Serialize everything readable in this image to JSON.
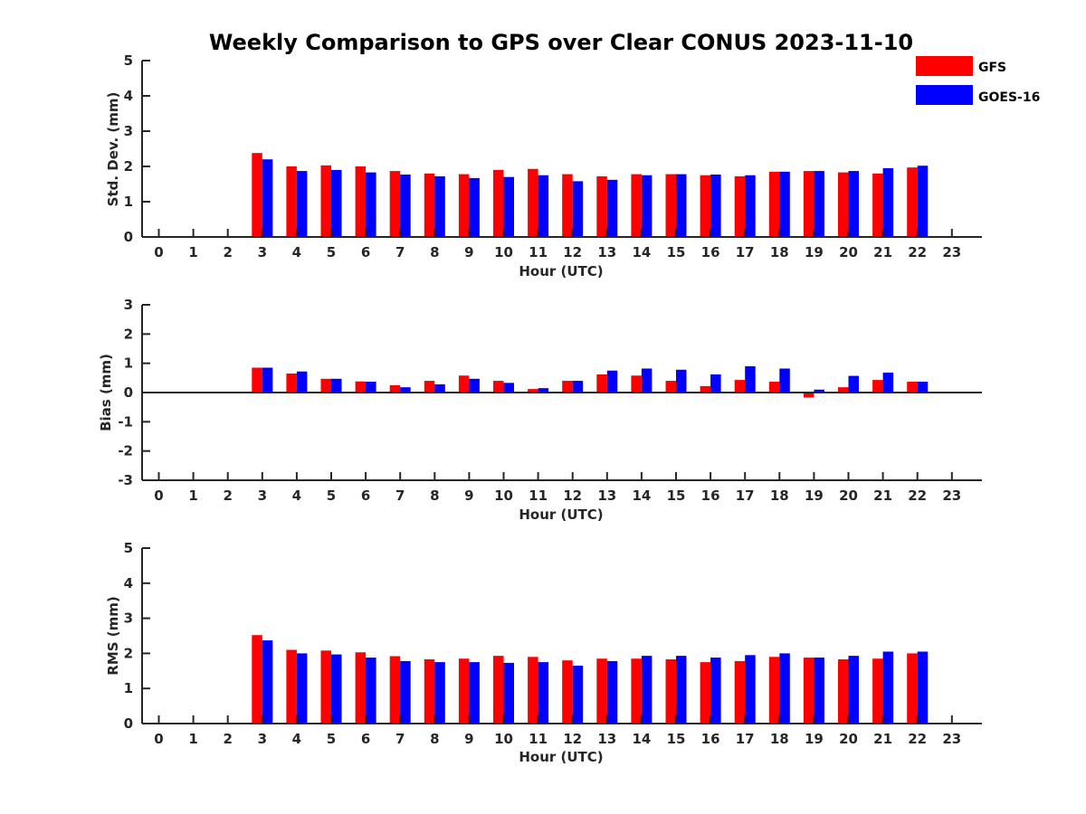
{
  "title": "Weekly Comparison to GPS over Clear CONUS 2023-11-10",
  "legend": {
    "items": [
      {
        "label": "GFS",
        "color": "#ff0000"
      },
      {
        "label": "GOES-16",
        "color": "#0000ff"
      }
    ]
  },
  "chart_data": [
    {
      "type": "bar",
      "ylabel": "Std. Dev. (mm)",
      "xlabel": "Hour (UTC)",
      "ylim": [
        0,
        5
      ],
      "yticks": [
        "0",
        "1",
        "2",
        "3",
        "4",
        "5"
      ],
      "categories": [
        "0",
        "1",
        "2",
        "3",
        "4",
        "5",
        "6",
        "7",
        "8",
        "9",
        "10",
        "11",
        "12",
        "13",
        "14",
        "15",
        "16",
        "17",
        "18",
        "19",
        "20",
        "21",
        "22",
        "23"
      ],
      "series": [
        {
          "name": "GFS",
          "color": "#ff0000",
          "values": [
            null,
            null,
            null,
            2.38,
            2.0,
            2.03,
            2.0,
            1.87,
            1.8,
            1.78,
            1.9,
            1.93,
            1.78,
            1.72,
            1.78,
            1.78,
            1.75,
            1.72,
            1.85,
            1.87,
            1.83,
            1.8,
            1.97,
            null
          ]
        },
        {
          "name": "GOES-16",
          "color": "#0000ff",
          "values": [
            null,
            null,
            null,
            2.2,
            1.87,
            1.9,
            1.83,
            1.77,
            1.72,
            1.67,
            1.7,
            1.75,
            1.58,
            1.62,
            1.75,
            1.78,
            1.77,
            1.75,
            1.85,
            1.87,
            1.87,
            1.95,
            2.02,
            null
          ]
        }
      ]
    },
    {
      "type": "bar",
      "ylabel": "Bias (mm)",
      "xlabel": "Hour (UTC)",
      "ylim": [
        -3,
        3
      ],
      "yticks": [
        "-3",
        "-2",
        "-1",
        "0",
        "1",
        "2",
        "3"
      ],
      "categories": [
        "0",
        "1",
        "2",
        "3",
        "4",
        "5",
        "6",
        "7",
        "8",
        "9",
        "10",
        "11",
        "12",
        "13",
        "14",
        "15",
        "16",
        "17",
        "18",
        "19",
        "20",
        "21",
        "22",
        "23"
      ],
      "series": [
        {
          "name": "GFS",
          "color": "#ff0000",
          "values": [
            null,
            null,
            null,
            0.85,
            0.65,
            0.47,
            0.38,
            0.25,
            0.4,
            0.58,
            0.4,
            0.12,
            0.4,
            0.62,
            0.58,
            0.4,
            0.22,
            0.43,
            0.37,
            -0.17,
            0.18,
            0.43,
            0.37,
            null
          ]
        },
        {
          "name": "GOES-16",
          "color": "#0000ff",
          "values": [
            null,
            null,
            null,
            0.85,
            0.72,
            0.47,
            0.37,
            0.18,
            0.28,
            0.47,
            0.33,
            0.15,
            0.4,
            0.75,
            0.82,
            0.78,
            0.62,
            0.9,
            0.82,
            0.1,
            0.57,
            0.68,
            0.37,
            null
          ]
        }
      ]
    },
    {
      "type": "bar",
      "ylabel": "RMS (mm)",
      "xlabel": "Hour (UTC)",
      "ylim": [
        0,
        5
      ],
      "yticks": [
        "0",
        "1",
        "2",
        "3",
        "4",
        "5"
      ],
      "categories": [
        "0",
        "1",
        "2",
        "3",
        "4",
        "5",
        "6",
        "7",
        "8",
        "9",
        "10",
        "11",
        "12",
        "13",
        "14",
        "15",
        "16",
        "17",
        "18",
        "19",
        "20",
        "21",
        "22",
        "23"
      ],
      "series": [
        {
          "name": "GFS",
          "color": "#ff0000",
          "values": [
            null,
            null,
            null,
            2.52,
            2.1,
            2.08,
            2.03,
            1.92,
            1.83,
            1.85,
            1.93,
            1.9,
            1.8,
            1.85,
            1.85,
            1.83,
            1.75,
            1.78,
            1.9,
            1.88,
            1.83,
            1.85,
            2.0,
            null
          ]
        },
        {
          "name": "GOES-16",
          "color": "#0000ff",
          "values": [
            null,
            null,
            null,
            2.37,
            2.0,
            1.97,
            1.88,
            1.78,
            1.75,
            1.75,
            1.73,
            1.75,
            1.65,
            1.78,
            1.93,
            1.93,
            1.88,
            1.95,
            2.0,
            1.88,
            1.93,
            2.05,
            2.05,
            null
          ]
        }
      ]
    }
  ]
}
